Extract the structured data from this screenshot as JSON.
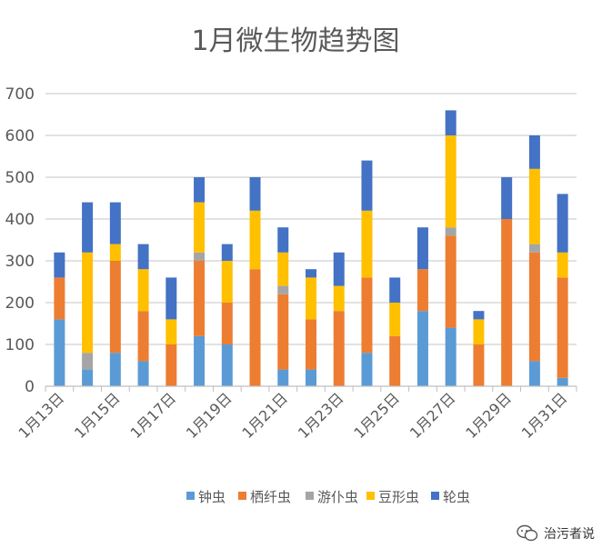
{
  "chart_data": {
    "type": "bar",
    "stacked": true,
    "title": "1月微生物趋势图",
    "xlabel": "",
    "ylabel": "",
    "ylim": [
      0,
      700
    ],
    "yticks": [
      0,
      100,
      200,
      300,
      400,
      500,
      600,
      700
    ],
    "grid": true,
    "legend_position": "bottom",
    "categories": [
      "1月13日",
      "1月14日",
      "1月15日",
      "1月16日",
      "1月17日",
      "1月18日",
      "1月19日",
      "1月20日",
      "1月21日",
      "1月22日",
      "1月23日",
      "1月24日",
      "1月25日",
      "1月26日",
      "1月27日",
      "1月28日",
      "1月29日",
      "1月30日",
      "1月31日"
    ],
    "tick_labels": [
      "1月13日",
      "",
      "1月15日",
      "",
      "1月17日",
      "",
      "1月19日",
      "",
      "1月21日",
      "",
      "1月23日",
      "",
      "1月25日",
      "",
      "1月27日",
      "",
      "1月29日",
      "",
      "1月31日"
    ],
    "series": [
      {
        "name": "钟虫",
        "color": "#5b9bd5",
        "values": [
          160,
          40,
          80,
          60,
          0,
          120,
          100,
          0,
          40,
          40,
          0,
          80,
          0,
          180,
          140,
          0,
          0,
          60,
          20
        ]
      },
      {
        "name": "栖纤虫",
        "color": "#ed7d31",
        "values": [
          100,
          0,
          220,
          120,
          100,
          180,
          100,
          280,
          180,
          120,
          180,
          180,
          120,
          100,
          220,
          100,
          400,
          260,
          240
        ]
      },
      {
        "name": "游仆虫",
        "color": "#a5a5a5",
        "values": [
          0,
          40,
          0,
          0,
          0,
          20,
          0,
          0,
          20,
          0,
          0,
          0,
          0,
          0,
          20,
          0,
          0,
          20,
          0
        ]
      },
      {
        "name": "豆形虫",
        "color": "#ffc000",
        "values": [
          0,
          240,
          40,
          100,
          60,
          120,
          100,
          140,
          80,
          100,
          60,
          160,
          80,
          0,
          220,
          60,
          0,
          180,
          60
        ]
      },
      {
        "name": "轮虫",
        "color": "#4472c4",
        "values": [
          60,
          120,
          100,
          60,
          100,
          60,
          40,
          80,
          60,
          20,
          80,
          120,
          60,
          100,
          60,
          20,
          100,
          80,
          140
        ]
      }
    ]
  },
  "watermark": {
    "text": "治污者说",
    "icon": "wechat-icon"
  }
}
